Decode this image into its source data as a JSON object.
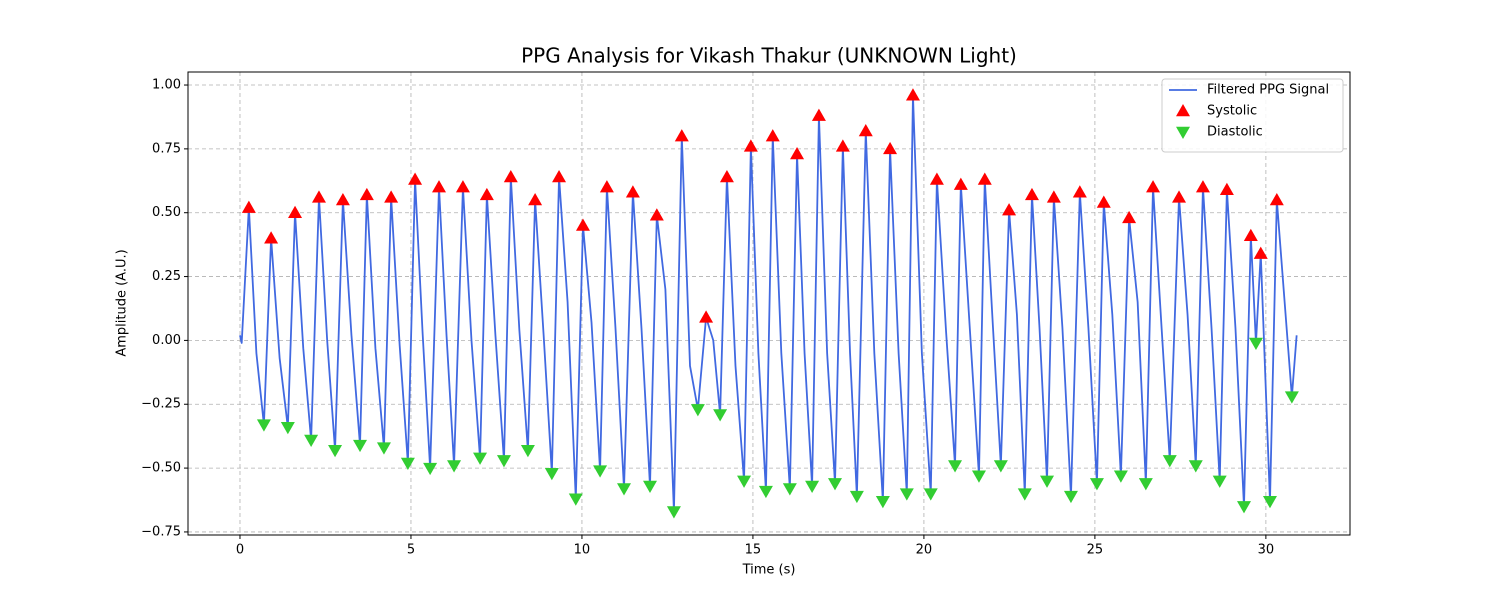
{
  "chart_data": {
    "type": "line",
    "title": "PPG Analysis for Vikash Thakur (UNKNOWN Light)",
    "xlabel": "Time (s)",
    "ylabel": "Amplitude (A.U.)",
    "xlim": [
      -1.52,
      32.46
    ],
    "ylim": [
      -0.762,
      1.051
    ],
    "xticks": [
      0,
      5,
      10,
      15,
      20,
      25,
      30
    ],
    "yticks": [
      {
        "value": -0.75,
        "label": "−0.75"
      },
      {
        "value": -0.5,
        "label": "−0.50"
      },
      {
        "value": -0.25,
        "label": "−0.25"
      },
      {
        "value": 0,
        "label": "0.00"
      },
      {
        "value": 0.25,
        "label": "0.25"
      },
      {
        "value": 0.5,
        "label": "0.50"
      },
      {
        "value": 0.75,
        "label": "0.75"
      },
      {
        "value": 1,
        "label": "1.00"
      }
    ],
    "grid": true,
    "legend": "upper right",
    "series": [
      {
        "name": "Filtered PPG Signal",
        "type": "line",
        "color": "#4169e1",
        "x": [
          0,
          0.05,
          0.26,
          0.48,
          0.7,
          0.91,
          1.16,
          1.4,
          1.61,
          1.85,
          2.08,
          2.31,
          2.55,
          2.78,
          3.01,
          3.26,
          3.51,
          3.71,
          3.96,
          4.21,
          4.42,
          4.67,
          4.91,
          5.12,
          5.34,
          5.56,
          5.82,
          6.04,
          6.26,
          6.52,
          6.77,
          7.02,
          7.22,
          7.47,
          7.72,
          7.92,
          8.17,
          8.42,
          8.63,
          8.88,
          9.12,
          9.33,
          9.58,
          9.82,
          10.03,
          10.28,
          10.53,
          10.73,
          10.98,
          11.23,
          11.49,
          11.74,
          11.99,
          12.19,
          12.44,
          12.69,
          12.92,
          13.16,
          13.39,
          13.63,
          13.84,
          14.04,
          14.24,
          14.49,
          14.74,
          14.94,
          15.16,
          15.38,
          15.58,
          15.83,
          16.08,
          16.29,
          16.51,
          16.73,
          16.93,
          17.17,
          17.4,
          17.63,
          17.84,
          18.04,
          18.3,
          18.55,
          18.8,
          19.01,
          19.26,
          19.5,
          19.68,
          19.94,
          20.2,
          20.38,
          20.65,
          20.91,
          21.08,
          21.35,
          21.61,
          21.78,
          22.02,
          22.25,
          22.49,
          22.72,
          22.95,
          23.16,
          23.38,
          23.6,
          23.8,
          24.05,
          24.3,
          24.56,
          24.81,
          25.06,
          25.26,
          25.51,
          25.76,
          26.0,
          26.25,
          26.49,
          26.7,
          26.95,
          27.19,
          27.46,
          27.71,
          27.95,
          28.16,
          28.41,
          28.65,
          28.86,
          29.11,
          29.36,
          29.56,
          29.71,
          29.85,
          30.12,
          30.32,
          30.76,
          30.9
        ],
        "values": [
          0.02,
          -0.01,
          0.52,
          -0.05,
          -0.33,
          0.4,
          -0.07,
          -0.34,
          0.5,
          -0.03,
          -0.39,
          0.56,
          0.0,
          -0.43,
          0.55,
          0.02,
          -0.41,
          0.57,
          -0.03,
          -0.42,
          0.56,
          -0.02,
          -0.48,
          0.63,
          0.03,
          -0.5,
          0.6,
          0.02,
          -0.49,
          0.6,
          0.0,
          -0.46,
          0.57,
          0.02,
          -0.47,
          0.64,
          0.04,
          -0.43,
          0.55,
          0.02,
          -0.52,
          0.64,
          0.15,
          -0.62,
          0.45,
          0.07,
          -0.51,
          0.6,
          0.05,
          -0.58,
          0.58,
          0.05,
          -0.57,
          0.49,
          0.2,
          -0.67,
          0.8,
          -0.1,
          -0.27,
          0.09,
          0.0,
          -0.29,
          0.64,
          -0.1,
          -0.55,
          0.76,
          -0.05,
          -0.59,
          0.8,
          -0.05,
          -0.58,
          0.73,
          -0.05,
          -0.57,
          0.88,
          -0.05,
          -0.56,
          0.76,
          -0.05,
          -0.61,
          0.82,
          -0.05,
          -0.63,
          0.75,
          -0.05,
          -0.6,
          0.96,
          -0.05,
          -0.6,
          0.63,
          0.03,
          -0.49,
          0.61,
          0.03,
          -0.53,
          0.63,
          0.05,
          -0.49,
          0.51,
          0.1,
          -0.6,
          0.57,
          0.05,
          -0.55,
          0.56,
          0.05,
          -0.61,
          0.58,
          0.05,
          -0.56,
          0.54,
          0.1,
          -0.53,
          0.48,
          0.15,
          -0.56,
          0.6,
          0.05,
          -0.47,
          0.56,
          0.1,
          -0.49,
          0.6,
          0.05,
          -0.55,
          0.59,
          0.05,
          -0.65,
          0.41,
          -0.01,
          0.34,
          -0.63,
          0.55,
          -0.22,
          0.02
        ]
      },
      {
        "name": "Systolic",
        "type": "scatter",
        "marker": "up",
        "color": "#ff0000",
        "x": [
          0.26,
          0.91,
          1.61,
          2.31,
          3.01,
          3.71,
          4.42,
          5.12,
          5.82,
          6.52,
          7.22,
          7.92,
          8.63,
          9.33,
          10.03,
          10.73,
          11.49,
          12.19,
          12.92,
          13.63,
          14.24,
          14.94,
          15.58,
          16.29,
          16.93,
          17.63,
          18.3,
          19.01,
          19.68,
          20.38,
          21.08,
          21.78,
          22.49,
          23.16,
          23.8,
          24.56,
          25.26,
          26.0,
          26.7,
          27.46,
          28.16,
          28.86,
          29.56,
          29.85,
          30.32
        ],
        "values": [
          0.52,
          0.4,
          0.5,
          0.56,
          0.55,
          0.57,
          0.56,
          0.63,
          0.6,
          0.6,
          0.57,
          0.64,
          0.55,
          0.64,
          0.45,
          0.6,
          0.58,
          0.49,
          0.8,
          0.09,
          0.64,
          0.76,
          0.8,
          0.73,
          0.88,
          0.76,
          0.82,
          0.75,
          0.96,
          0.63,
          0.61,
          0.63,
          0.51,
          0.57,
          0.56,
          0.58,
          0.54,
          0.48,
          0.6,
          0.56,
          0.6,
          0.59,
          0.41,
          0.34,
          0.55
        ]
      },
      {
        "name": "Diastolic",
        "type": "scatter",
        "marker": "down",
        "color": "#32cd32",
        "x": [
          0.7,
          1.4,
          2.08,
          2.78,
          3.51,
          4.21,
          4.91,
          5.56,
          6.26,
          7.02,
          7.72,
          8.42,
          9.12,
          9.82,
          10.53,
          11.23,
          11.99,
          12.69,
          13.39,
          14.04,
          14.74,
          15.38,
          16.08,
          16.73,
          17.4,
          18.04,
          18.8,
          19.5,
          20.2,
          20.91,
          21.61,
          22.25,
          22.95,
          23.6,
          24.3,
          25.06,
          25.76,
          26.49,
          27.19,
          27.95,
          28.65,
          29.36,
          29.71,
          30.12,
          30.76
        ],
        "values": [
          -0.33,
          -0.34,
          -0.39,
          -0.43,
          -0.41,
          -0.42,
          -0.48,
          -0.5,
          -0.49,
          -0.46,
          -0.47,
          -0.43,
          -0.52,
          -0.62,
          -0.51,
          -0.58,
          -0.57,
          -0.67,
          -0.27,
          -0.29,
          -0.55,
          -0.59,
          -0.58,
          -0.57,
          -0.56,
          -0.61,
          -0.63,
          -0.6,
          -0.6,
          -0.49,
          -0.53,
          -0.49,
          -0.6,
          -0.55,
          -0.61,
          -0.56,
          -0.53,
          -0.56,
          -0.47,
          -0.49,
          -0.55,
          -0.65,
          -0.01,
          -0.63,
          -0.22
        ]
      }
    ]
  }
}
